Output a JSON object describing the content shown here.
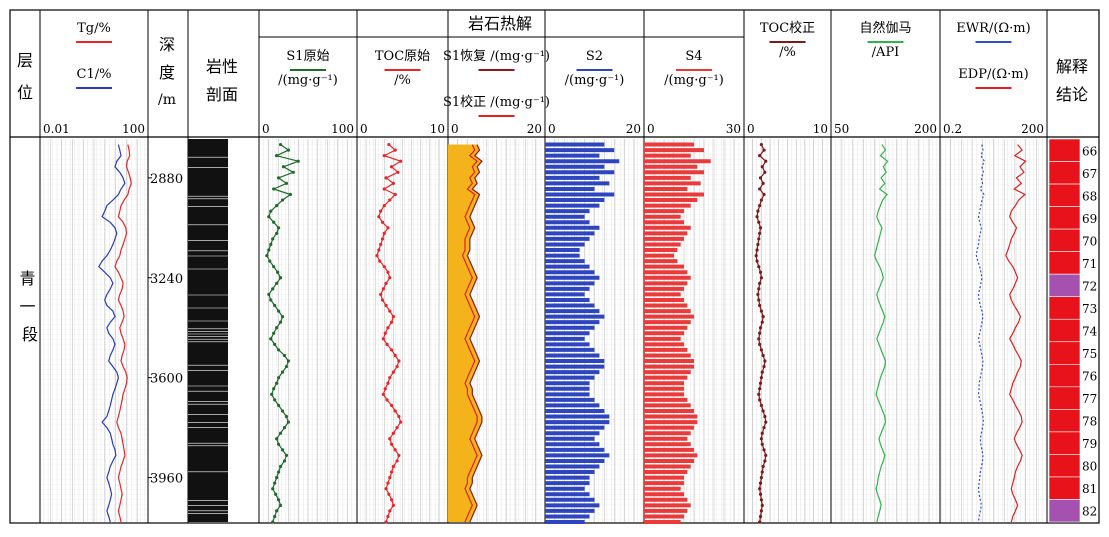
{
  "header": {
    "group_title": "岩石热解",
    "layer": [
      "层",
      "位"
    ],
    "depth": [
      "深",
      "度",
      "/m"
    ],
    "lith": [
      "岩性",
      "剖面"
    ],
    "conclusion": [
      "解释",
      "结论"
    ]
  },
  "tracks": [
    {
      "id": "gas",
      "l1": "Tg/%",
      "l2": "C1/%",
      "scale_min": "0.01",
      "scale_max": "100"
    },
    {
      "id": "s1raw",
      "l1": "S1原始",
      "l2": "/(mg·g⁻¹)",
      "scale_min": "0",
      "scale_max": "100"
    },
    {
      "id": "tocraw",
      "l1": "TOC原始",
      "l2": "/%",
      "scale_min": "0",
      "scale_max": "10"
    },
    {
      "id": "s1",
      "l1": "S1恢复 /(mg·g⁻¹)",
      "l2": "S1校正 /(mg·g⁻¹)",
      "scale_min": "0",
      "scale_max": "20"
    },
    {
      "id": "s2",
      "l1": "S2",
      "l2": "/(mg·g⁻¹)",
      "scale_min": "0",
      "scale_max": "20"
    },
    {
      "id": "s4",
      "l1": "S4",
      "l2": "/(mg·g⁻¹)",
      "scale_min": "0",
      "scale_max": "30"
    },
    {
      "id": "tocc",
      "l1": "TOC校正",
      "l2": "/%",
      "scale_min": "0",
      "scale_max": "10"
    },
    {
      "id": "gr",
      "l1": "自然伽马",
      "l2": "/API",
      "scale_min": "50",
      "scale_max": "200"
    },
    {
      "id": "res",
      "l1": "EWR/(Ω·m)",
      "l2": "EDP/(Ω·m)",
      "scale_min": "0.2",
      "scale_max": "200"
    }
  ],
  "formation": "青一段",
  "depth_ticks": [
    "2880",
    "3240",
    "3600",
    "3960"
  ],
  "layers": [
    {
      "n": "66",
      "class": "oil"
    },
    {
      "n": "67",
      "class": "oil"
    },
    {
      "n": "68",
      "class": "oil"
    },
    {
      "n": "69",
      "class": "oil"
    },
    {
      "n": "70",
      "class": "oil"
    },
    {
      "n": "71",
      "class": "oil"
    },
    {
      "n": "72",
      "class": "other"
    },
    {
      "n": "73",
      "class": "oil"
    },
    {
      "n": "74",
      "class": "oil"
    },
    {
      "n": "75",
      "class": "oil"
    },
    {
      "n": "76",
      "class": "oil"
    },
    {
      "n": "77",
      "class": "oil"
    },
    {
      "n": "78",
      "class": "oil"
    },
    {
      "n": "79",
      "class": "oil"
    },
    {
      "n": "80",
      "class": "oil"
    },
    {
      "n": "81",
      "class": "oil"
    },
    {
      "n": "82",
      "class": "other"
    }
  ],
  "colors": {
    "tg": "#e8262a",
    "c1": "#2b3ab8",
    "s1raw": "#1e6b2a",
    "tocraw": "#e8262a",
    "s1fill": "#f5b31b",
    "s1rec": "#8b1a1a",
    "s1cor": "#e02020",
    "s2": "#2d46c0",
    "s4": "#ea3a3a",
    "tocc": "#7a1a1a",
    "gr": "#2fb34a",
    "ewr": "#2f4fd0",
    "edp": "#e02020",
    "oil": "#e8121a",
    "other": "#a551b0",
    "lith": "#111111"
  },
  "chart_data": {
    "type": "line",
    "title": "",
    "y_axis": {
      "label": "深度/m",
      "ticks": [
        2880,
        3240,
        3600,
        3960
      ],
      "range": [
        2740,
        4120
      ]
    },
    "series": [
      {
        "name": "Tg",
        "track": "gas",
        "scale": "log",
        "range": [
          0.01,
          100
        ],
        "depth_step": 20,
        "values": [
          18,
          20,
          21,
          17,
          16,
          19,
          22,
          24,
          20,
          18,
          13,
          10,
          9,
          8,
          12,
          15,
          16,
          14,
          12,
          10,
          9,
          7,
          6,
          8,
          10,
          12,
          11,
          9,
          8,
          10,
          12,
          13,
          11,
          9,
          10,
          12,
          14,
          13,
          11,
          10,
          12,
          15,
          17,
          16,
          14,
          12,
          11,
          10,
          9,
          8,
          7,
          8,
          10,
          11,
          12,
          13,
          14,
          12,
          10,
          9,
          8,
          9,
          10,
          11,
          10,
          9,
          8,
          9,
          10,
          11
        ]
      },
      {
        "name": "C1",
        "track": "gas",
        "scale": "log",
        "range": [
          0.01,
          100
        ],
        "depth_step": 20,
        "values": [
          8,
          9,
          10,
          7,
          6,
          9,
          12,
          14,
          10,
          8,
          5,
          3,
          2.5,
          2,
          4,
          6,
          7,
          6,
          5,
          4,
          3,
          2,
          1.5,
          2.5,
          4,
          5,
          4,
          3,
          2.5,
          3,
          5,
          6,
          4,
          3,
          3.5,
          5,
          6,
          5,
          4,
          3.5,
          5,
          7,
          8,
          7,
          6,
          5,
          4.5,
          4,
          3.5,
          3,
          2,
          3,
          4,
          4.5,
          5,
          6,
          6.5,
          5,
          4,
          3.5,
          3,
          3.5,
          4,
          4.5,
          4,
          3.5,
          3,
          3.5,
          4,
          4.5
        ]
      },
      {
        "name": "S1原始",
        "track": "s1raw",
        "range": [
          0,
          100
        ],
        "depth_step": 20,
        "values": [
          22,
          30,
          18,
          40,
          25,
          35,
          20,
          28,
          15,
          32,
          24,
          18,
          12,
          10,
          15,
          20,
          18,
          14,
          12,
          10,
          8,
          11,
          15,
          19,
          22,
          18,
          14,
          10,
          12,
          16,
          20,
          24,
          22,
          18,
          15,
          12,
          16,
          20,
          26,
          30,
          28,
          24,
          20,
          18,
          15,
          13,
          16,
          20,
          24,
          28,
          30,
          26,
          22,
          18,
          20,
          24,
          28,
          26,
          22,
          20,
          18,
          16,
          14,
          17,
          20,
          22,
          18,
          16,
          14,
          12
        ]
      },
      {
        "name": "TOC原始",
        "track": "tocraw",
        "range": [
          0,
          10
        ],
        "depth_step": 20,
        "values": [
          3.5,
          4.2,
          3.0,
          4.8,
          3.8,
          4.5,
          3.2,
          4.0,
          3.0,
          4.2,
          3.6,
          3.0,
          2.6,
          2.4,
          2.8,
          3.4,
          3.0,
          2.8,
          2.6,
          2.4,
          2.2,
          2.5,
          3.0,
          3.4,
          3.6,
          3.2,
          2.9,
          2.6,
          2.8,
          3.2,
          3.6,
          4.0,
          3.8,
          3.4,
          3.1,
          2.9,
          3.3,
          3.8,
          4.2,
          4.6,
          4.4,
          4.0,
          3.6,
          3.4,
          3.1,
          2.9,
          3.3,
          3.8,
          4.2,
          4.6,
          4.8,
          4.4,
          4.0,
          3.6,
          3.8,
          4.2,
          4.6,
          4.4,
          4.0,
          3.8,
          3.6,
          3.4,
          3.2,
          3.5,
          3.8,
          4.0,
          3.6,
          3.4,
          3.2,
          3.0
        ]
      },
      {
        "name": "S1恢复",
        "track": "s1",
        "range": [
          0,
          20
        ],
        "depth_step": 20,
        "values": [
          6,
          6.5,
          5.5,
          7,
          6,
          6.5,
          5.5,
          6,
          5,
          6.5,
          6,
          5.5,
          5,
          4.5,
          5,
          5.5,
          5,
          4.5,
          4.5,
          4.5,
          4,
          4.5,
          5,
          5.5,
          6,
          5.5,
          5,
          4.5,
          5,
          5.5,
          6,
          6.5,
          6,
          5.5,
          5,
          4.5,
          5,
          5.5,
          6,
          6.5,
          6,
          5.5,
          5,
          4.5,
          5,
          5,
          5.5,
          6,
          6.5,
          7,
          7,
          6.5,
          6,
          5.5,
          6,
          6.5,
          7,
          6.5,
          6,
          5.5,
          5,
          5,
          4.5,
          5,
          5.5,
          6,
          5.5,
          5,
          4.5,
          4.5
        ]
      },
      {
        "name": "S1校正",
        "track": "s1",
        "range": [
          0,
          20
        ],
        "depth_step": 20,
        "values": [
          5,
          5.5,
          4.5,
          6,
          5,
          5.5,
          4.5,
          5,
          4,
          5.5,
          5,
          4.5,
          4,
          3.5,
          4,
          4.5,
          4,
          3.5,
          3.5,
          3.5,
          3,
          3.5,
          4,
          4.5,
          5,
          4.5,
          4,
          3.5,
          4,
          4.5,
          5,
          5.5,
          5,
          4.5,
          4,
          3.5,
          4,
          4.5,
          5,
          5.5,
          5,
          4.5,
          4,
          3.5,
          4,
          4,
          4.5,
          5,
          5.5,
          6,
          6,
          5.5,
          5,
          4.5,
          5,
          5.5,
          6,
          5.5,
          5,
          4.5,
          4,
          4,
          3.5,
          4,
          4.5,
          5,
          4.5,
          4,
          3.5,
          3.5
        ]
      },
      {
        "name": "S2",
        "track": "s2",
        "range": [
          0,
          20
        ],
        "depth_step": 20,
        "values": [
          12,
          14,
          11,
          15,
          12,
          14,
          11,
          13,
          10,
          14,
          12,
          11,
          9,
          8,
          9,
          11,
          10,
          9,
          8,
          7,
          7,
          8,
          9,
          10,
          11,
          10,
          9,
          8,
          9,
          10,
          11,
          12,
          11,
          10,
          9,
          8,
          9,
          10,
          11,
          12,
          12,
          11,
          10,
          9,
          9,
          9,
          10,
          11,
          12,
          13,
          13,
          12,
          11,
          10,
          11,
          12,
          13,
          12,
          11,
          10,
          9,
          9,
          8,
          9,
          10,
          11,
          10,
          9,
          8,
          8
        ]
      },
      {
        "name": "S4",
        "track": "s4",
        "range": [
          0,
          30
        ],
        "depth_step": 20,
        "values": [
          15,
          18,
          14,
          20,
          16,
          18,
          14,
          17,
          13,
          18,
          16,
          14,
          12,
          11,
          12,
          14,
          13,
          12,
          11,
          10,
          9,
          10,
          12,
          13,
          14,
          13,
          12,
          11,
          12,
          13,
          14,
          15,
          14,
          13,
          12,
          11,
          12,
          13,
          14,
          15,
          15,
          14,
          13,
          12,
          12,
          12,
          13,
          14,
          15,
          16,
          16,
          15,
          14,
          13,
          14,
          15,
          16,
          15,
          14,
          13,
          12,
          12,
          11,
          12,
          13,
          14,
          13,
          12,
          11,
          10
        ]
      },
      {
        "name": "TOC校正",
        "track": "tocc",
        "range": [
          0,
          10
        ],
        "depth_step": 20,
        "values": [
          2.0,
          2.3,
          1.8,
          2.5,
          2.1,
          2.4,
          1.9,
          2.2,
          1.8,
          2.3,
          2.0,
          1.8,
          1.6,
          1.5,
          1.7,
          1.9,
          1.8,
          1.7,
          1.6,
          1.5,
          1.4,
          1.5,
          1.7,
          1.9,
          2.0,
          1.8,
          1.7,
          1.6,
          1.7,
          1.8,
          2.0,
          2.2,
          2.1,
          1.9,
          1.8,
          1.7,
          1.8,
          2.0,
          2.2,
          2.4,
          2.3,
          2.1,
          2.0,
          1.9,
          1.8,
          1.7,
          1.8,
          2.0,
          2.2,
          2.4,
          2.5,
          2.3,
          2.1,
          2.0,
          2.1,
          2.3,
          2.5,
          2.4,
          2.2,
          2.1,
          2.0,
          1.9,
          1.8,
          1.9,
          2.0,
          2.1,
          2.0,
          1.9,
          1.8,
          1.7
        ]
      },
      {
        "name": "自然伽马",
        "track": "gr",
        "range": [
          50,
          200
        ],
        "depth_step": 20,
        "values": [
          120,
          125,
          118,
          128,
          122,
          126,
          119,
          124,
          117,
          127,
          121,
          118,
          115,
          113,
          116,
          120,
          118,
          116,
          114,
          112,
          110,
          113,
          117,
          120,
          122,
          119,
          116,
          113,
          115,
          118,
          121,
          124,
          122,
          119,
          116,
          113,
          116,
          119,
          122,
          125,
          124,
          121,
          118,
          116,
          114,
          112,
          115,
          118,
          121,
          124,
          125,
          122,
          119,
          116,
          118,
          121,
          124,
          122,
          119,
          117,
          115,
          114,
          112,
          114,
          117,
          119,
          117,
          115,
          113,
          111
        ]
      },
      {
        "name": "EWR",
        "track": "res",
        "scale": "log",
        "range": [
          0.2,
          200
        ],
        "depth_step": 20,
        "values": [
          3,
          3.2,
          2.8,
          3.5,
          3,
          3.3,
          2.9,
          3.1,
          2.7,
          3.4,
          3,
          2.8,
          2.6,
          2.4,
          2.6,
          2.9,
          2.7,
          2.5,
          2.4,
          2.2,
          2.1,
          2.3,
          2.6,
          2.8,
          3,
          2.8,
          2.6,
          2.4,
          2.5,
          2.7,
          3,
          3.2,
          3,
          2.8,
          2.6,
          2.4,
          2.6,
          2.8,
          3,
          3.2,
          3.1,
          2.9,
          2.7,
          2.5,
          2.5,
          2.4,
          2.6,
          2.8,
          3,
          3.2,
          3.3,
          3.1,
          2.9,
          2.7,
          2.8,
          3,
          3.2,
          3.1,
          2.9,
          2.7,
          2.6,
          2.5,
          2.4,
          2.5,
          2.7,
          2.9,
          2.7,
          2.5,
          2.4,
          2.3
        ]
      },
      {
        "name": "EDP",
        "track": "res",
        "scale": "log",
        "range": [
          0.2,
          200
        ],
        "depth_step": 20,
        "values": [
          30,
          40,
          25,
          50,
          35,
          45,
          28,
          38,
          24,
          48,
          32,
          26,
          20,
          18,
          22,
          28,
          24,
          20,
          18,
          16,
          14,
          17,
          22,
          26,
          30,
          26,
          22,
          18,
          20,
          24,
          30,
          36,
          32,
          26,
          22,
          18,
          22,
          26,
          32,
          38,
          36,
          30,
          26,
          22,
          20,
          18,
          22,
          26,
          32,
          38,
          40,
          34,
          28,
          24,
          28,
          34,
          40,
          36,
          30,
          26,
          24,
          22,
          20,
          22,
          26,
          30,
          26,
          22,
          20,
          18
        ]
      }
    ]
  }
}
